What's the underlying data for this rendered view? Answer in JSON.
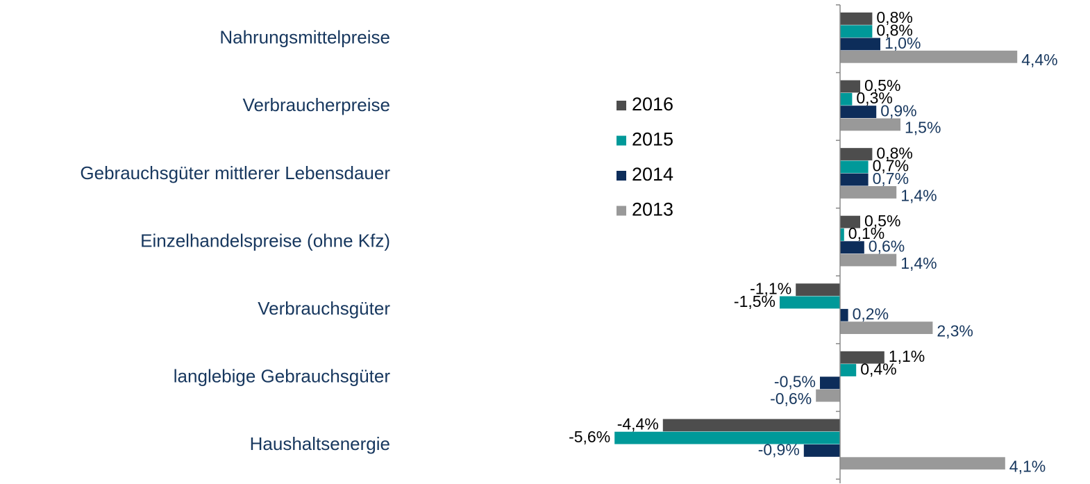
{
  "chart_data": {
    "type": "hbar",
    "categories": [
      "Nahrungsmittelpreise",
      "Verbraucherpreise",
      "Gebrauchsgüter mittlerer Lebensdauer",
      "Einzelhandelspreise (ohne Kfz)",
      "Verbrauchsgüter",
      "langlebige Gebrauchsgüter",
      "Haushaltsenergie"
    ],
    "series": [
      {
        "name": "2016",
        "color": "#4d4d4d",
        "label_color": "#000000",
        "values": [
          0.8,
          0.5,
          0.8,
          0.5,
          -1.1,
          1.1,
          -4.4
        ],
        "value_labels": [
          "0,8%",
          "0,5%",
          "0,8%",
          "0,5%",
          "-1,1%",
          "1,1%",
          "-4,4%"
        ]
      },
      {
        "name": "2015",
        "color": "#009999",
        "label_color": "#000000",
        "values": [
          0.8,
          0.3,
          0.7,
          0.1,
          -1.5,
          0.4,
          -5.6
        ],
        "value_labels": [
          "0,8%",
          "0,3%",
          "0,7%",
          "0,1%",
          "-1,5%",
          "0,4%",
          "-5,6%"
        ]
      },
      {
        "name": "2014",
        "color": "#0d2d5a",
        "label_color": "#17375e",
        "values": [
          1.0,
          0.9,
          0.7,
          0.6,
          0.2,
          -0.5,
          -0.9
        ],
        "value_labels": [
          "1,0%",
          "0,9%",
          "0,7%",
          "0,6%",
          "0,2%",
          "-0,5%",
          "-0,9%"
        ]
      },
      {
        "name": "2013",
        "color": "#999999",
        "label_color": "#17375e",
        "values": [
          4.4,
          1.5,
          1.4,
          1.4,
          2.3,
          -0.6,
          4.1
        ],
        "value_labels": [
          "4,4%",
          "1,5%",
          "1,4%",
          "1,4%",
          "2,3%",
          "-0,6%",
          "4,1%"
        ]
      }
    ],
    "xlim": [
      -6,
      6
    ]
  }
}
